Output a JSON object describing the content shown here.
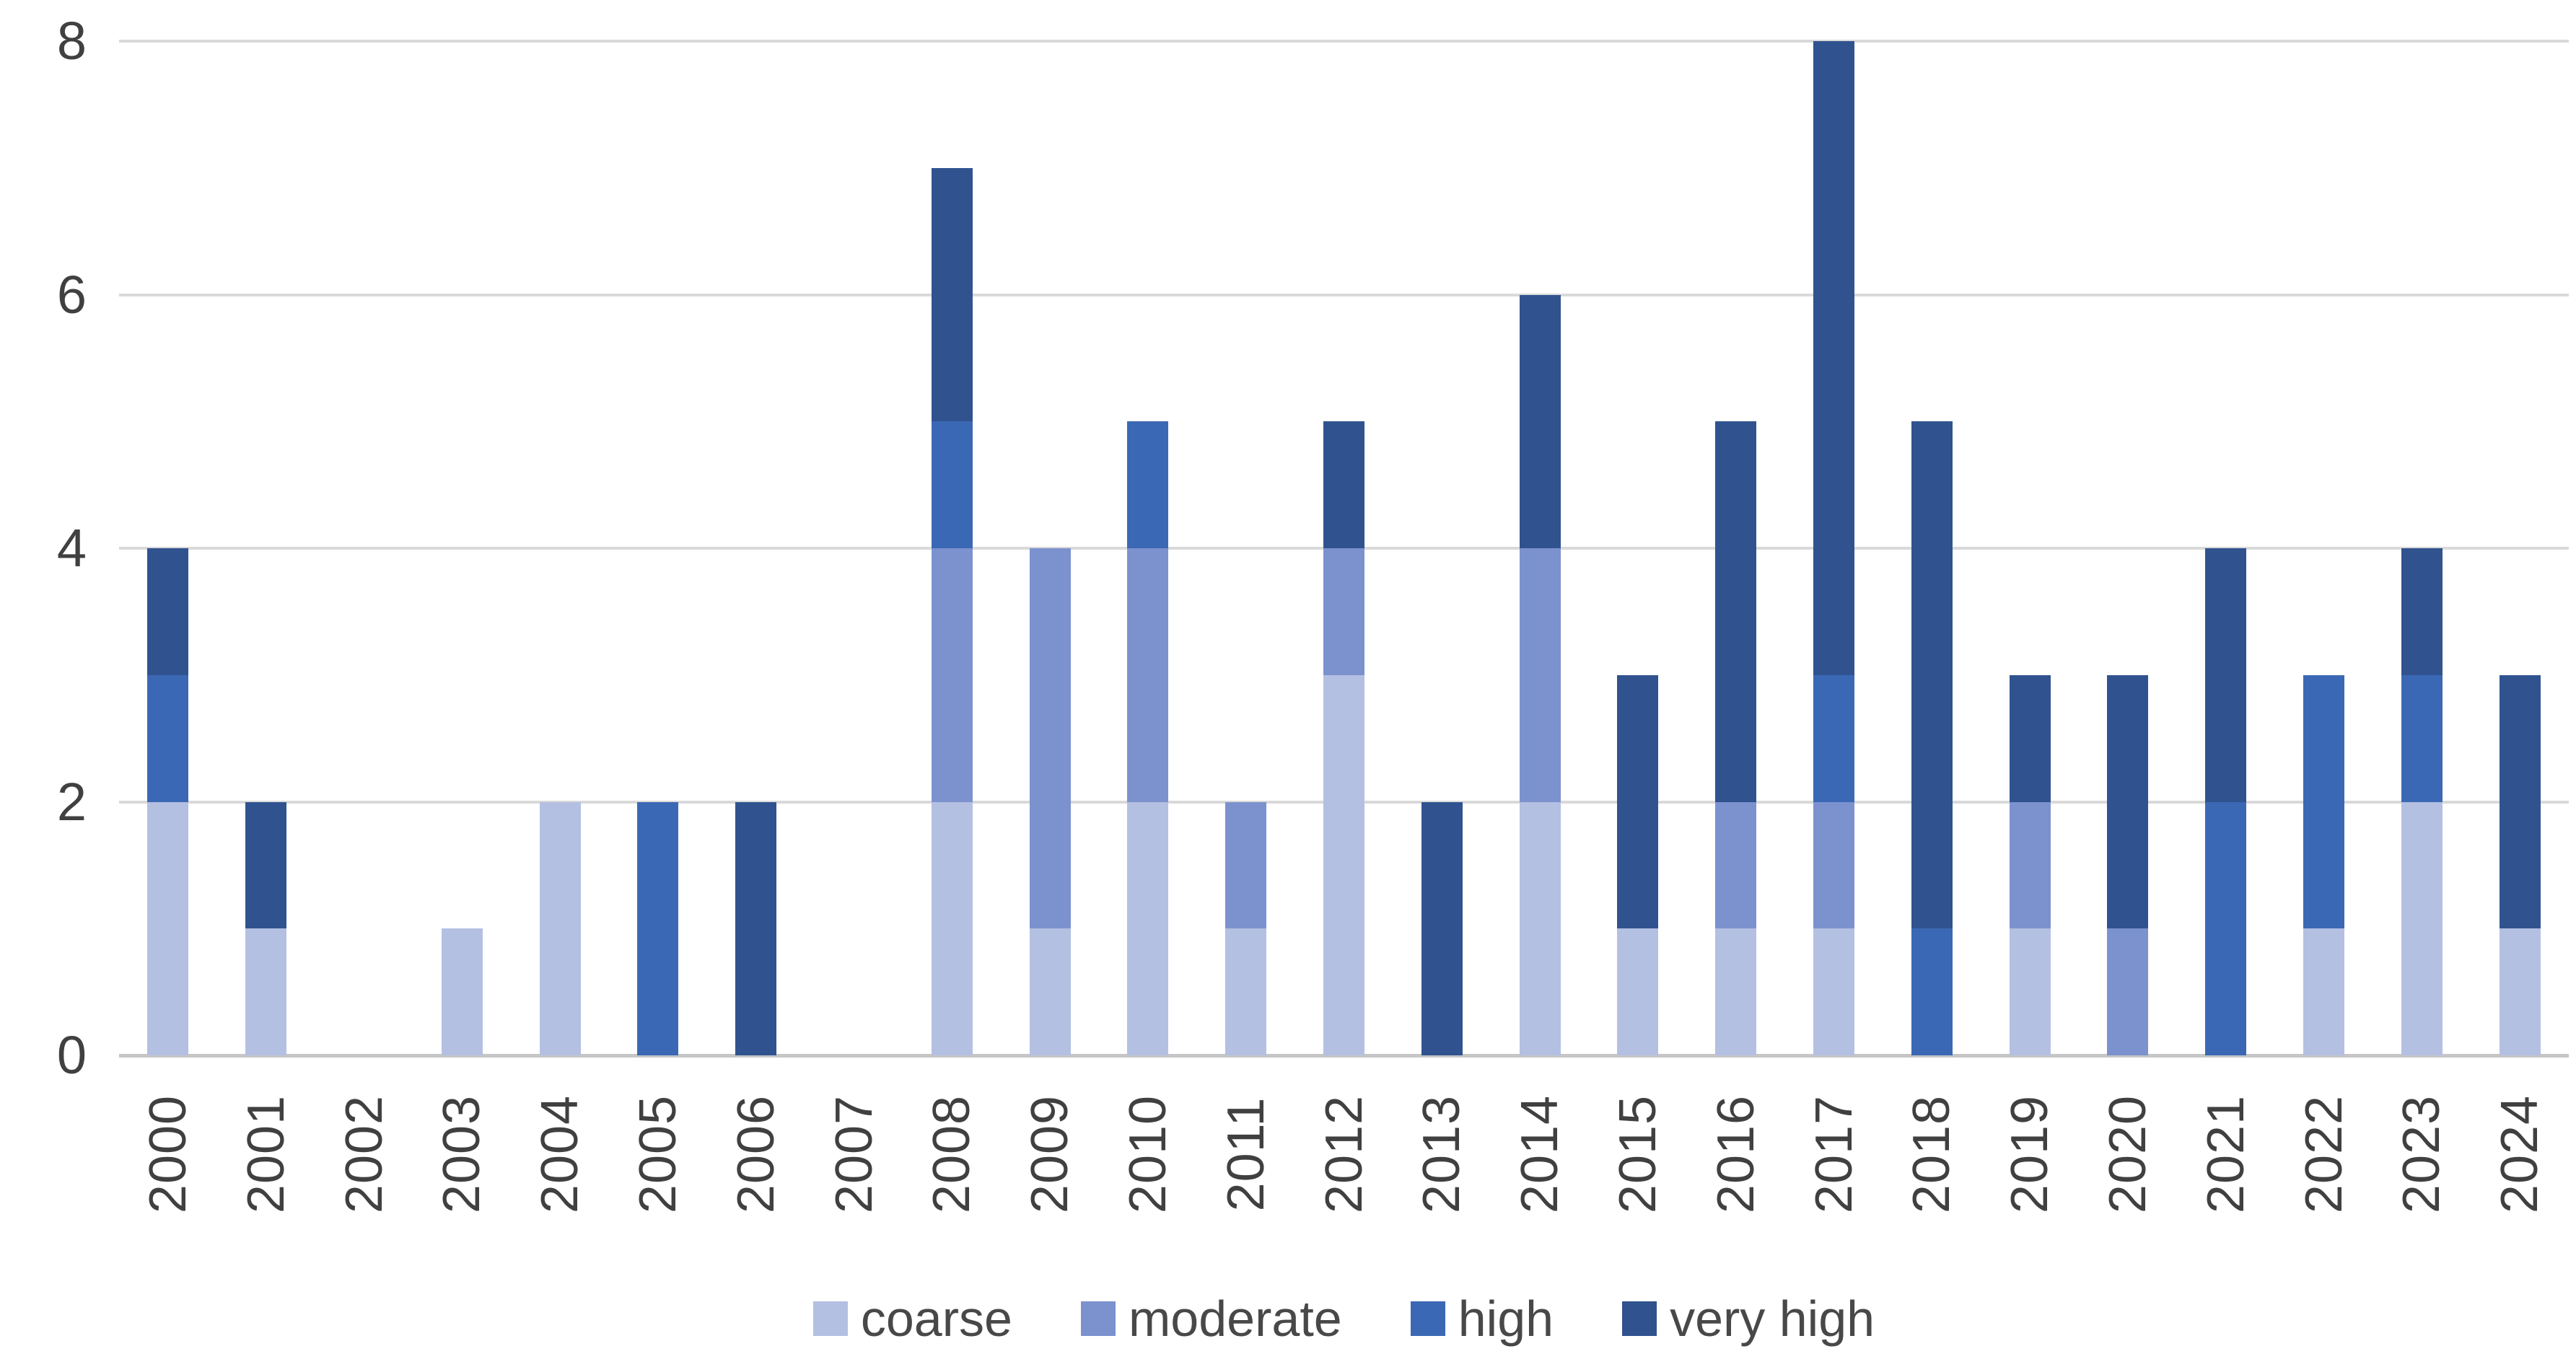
{
  "chart_data": {
    "type": "bar",
    "stacked": true,
    "title": "",
    "xlabel": "",
    "ylabel": "",
    "categories": [
      "2000",
      "2001",
      "2002",
      "2003",
      "2004",
      "2005",
      "2006",
      "2007",
      "2008",
      "2009",
      "2010",
      "2011",
      "2012",
      "2013",
      "2014",
      "2015",
      "2016",
      "2017",
      "2018",
      "2019",
      "2020",
      "2021",
      "2022",
      "2023",
      "2024"
    ],
    "series": [
      {
        "name": "coarse",
        "color": "#b4c0e2",
        "values": [
          2,
          1,
          0,
          1,
          2,
          0,
          0,
          0,
          2,
          1,
          2,
          1,
          3,
          0,
          2,
          1,
          1,
          1,
          0,
          1,
          0,
          0,
          1,
          2,
          1
        ]
      },
      {
        "name": "moderate",
        "color": "#7b92ce",
        "values": [
          0,
          0,
          0,
          0,
          0,
          0,
          0,
          0,
          2,
          3,
          2,
          1,
          1,
          0,
          2,
          0,
          1,
          1,
          0,
          1,
          1,
          0,
          0,
          0,
          0
        ]
      },
      {
        "name": "high",
        "color": "#3b68b4",
        "values": [
          1,
          0,
          0,
          0,
          0,
          2,
          0,
          0,
          1,
          0,
          1,
          0,
          0,
          0,
          0,
          0,
          0,
          1,
          1,
          0,
          0,
          2,
          2,
          1,
          0
        ]
      },
      {
        "name": "very high",
        "color": "#30538f",
        "values": [
          1,
          1,
          0,
          0,
          0,
          0,
          2,
          0,
          2,
          0,
          0,
          0,
          1,
          2,
          2,
          2,
          3,
          5,
          4,
          1,
          2,
          2,
          0,
          1,
          2
        ]
      }
    ],
    "ylim": [
      0,
      8
    ],
    "yticks": [
      0,
      2,
      4,
      6,
      8
    ],
    "grid": true,
    "legend_position": "bottom",
    "totals": [
      4,
      2,
      0,
      1,
      2,
      2,
      2,
      0,
      7,
      4,
      5,
      2,
      5,
      2,
      6,
      3,
      5,
      8,
      5,
      3,
      3,
      4,
      3,
      4,
      3
    ]
  },
  "style": {
    "gridline_color": "#d9d9d9",
    "axisline_color": "#c6c6c6",
    "tick_text_color": "#404040",
    "legend_text_color": "#484848",
    "background": "#ffffff"
  }
}
